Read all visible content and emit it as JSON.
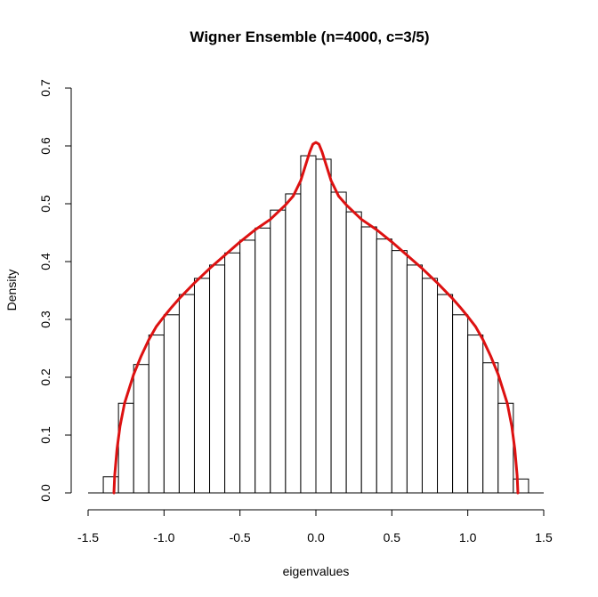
{
  "chart_data": {
    "type": "histogram",
    "title": "Wigner Ensemble (n=4000, c=3/5)",
    "xlabel": "eigenvalues",
    "ylabel": "Density",
    "xlim": [
      -1.5,
      1.5
    ],
    "ylim": [
      0,
      0.7
    ],
    "xticks": [
      -1.5,
      -1.0,
      -0.5,
      0.0,
      0.5,
      1.0,
      1.5
    ],
    "xtick_labels": [
      "-1.5",
      "-1.0",
      "-0.5",
      "0.0",
      "0.5",
      "1.0",
      "1.5"
    ],
    "yticks": [
      0.0,
      0.1,
      0.2,
      0.3,
      0.4,
      0.5,
      0.6,
      0.7
    ],
    "ytick_labels": [
      "0.0",
      "0.1",
      "0.2",
      "0.3",
      "0.4",
      "0.5",
      "0.6",
      "0.7"
    ],
    "bin_width": 0.1,
    "bins": [
      {
        "x0": -1.4,
        "x1": -1.3,
        "density": 0.028
      },
      {
        "x0": -1.3,
        "x1": -1.2,
        "density": 0.155
      },
      {
        "x0": -1.2,
        "x1": -1.1,
        "density": 0.222
      },
      {
        "x0": -1.1,
        "x1": -1.0,
        "density": 0.273
      },
      {
        "x0": -1.0,
        "x1": -0.9,
        "density": 0.308
      },
      {
        "x0": -0.9,
        "x1": -0.8,
        "density": 0.343
      },
      {
        "x0": -0.8,
        "x1": -0.7,
        "density": 0.371
      },
      {
        "x0": -0.7,
        "x1": -0.6,
        "density": 0.394
      },
      {
        "x0": -0.6,
        "x1": -0.5,
        "density": 0.415
      },
      {
        "x0": -0.5,
        "x1": -0.4,
        "density": 0.437
      },
      {
        "x0": -0.4,
        "x1": -0.3,
        "density": 0.458
      },
      {
        "x0": -0.3,
        "x1": -0.2,
        "density": 0.489
      },
      {
        "x0": -0.2,
        "x1": -0.1,
        "density": 0.517
      },
      {
        "x0": -0.1,
        "x1": 0.0,
        "density": 0.583
      },
      {
        "x0": 0.0,
        "x1": 0.1,
        "density": 0.577
      },
      {
        "x0": 0.1,
        "x1": 0.2,
        "density": 0.52
      },
      {
        "x0": 0.2,
        "x1": 0.3,
        "density": 0.486
      },
      {
        "x0": 0.3,
        "x1": 0.4,
        "density": 0.46
      },
      {
        "x0": 0.4,
        "x1": 0.5,
        "density": 0.439
      },
      {
        "x0": 0.5,
        "x1": 0.6,
        "density": 0.419
      },
      {
        "x0": 0.6,
        "x1": 0.7,
        "density": 0.394
      },
      {
        "x0": 0.7,
        "x1": 0.8,
        "density": 0.371
      },
      {
        "x0": 0.8,
        "x1": 0.9,
        "density": 0.343
      },
      {
        "x0": 0.9,
        "x1": 1.0,
        "density": 0.308
      },
      {
        "x0": 1.0,
        "x1": 1.1,
        "density": 0.273
      },
      {
        "x0": 1.1,
        "x1": 1.2,
        "density": 0.225
      },
      {
        "x0": 1.2,
        "x1": 1.3,
        "density": 0.155
      },
      {
        "x0": 1.3,
        "x1": 1.4,
        "density": 0.024
      }
    ],
    "density_curve": {
      "color": "#dd1111",
      "x": [
        -1.33,
        -1.325,
        -1.31,
        -1.29,
        -1.26,
        -1.2,
        -1.15,
        -1.1,
        -1.05,
        -1.0,
        -0.95,
        -0.9,
        -0.8,
        -0.7,
        -0.6,
        -0.5,
        -0.4,
        -0.3,
        -0.2,
        -0.15,
        -0.1,
        -0.07,
        -0.04,
        -0.02,
        0.0,
        0.02,
        0.04,
        0.07,
        0.1,
        0.15,
        0.2,
        0.3,
        0.4,
        0.5,
        0.6,
        0.7,
        0.8,
        0.9,
        0.95,
        1.0,
        1.05,
        1.1,
        1.15,
        1.2,
        1.26,
        1.29,
        1.31,
        1.325,
        1.33
      ],
      "y": [
        0.0,
        0.03,
        0.075,
        0.115,
        0.155,
        0.205,
        0.237,
        0.265,
        0.288,
        0.305,
        0.321,
        0.336,
        0.363,
        0.388,
        0.411,
        0.434,
        0.455,
        0.473,
        0.498,
        0.513,
        0.54,
        0.565,
        0.59,
        0.603,
        0.606,
        0.603,
        0.59,
        0.565,
        0.54,
        0.513,
        0.498,
        0.473,
        0.455,
        0.434,
        0.411,
        0.388,
        0.363,
        0.336,
        0.321,
        0.305,
        0.288,
        0.265,
        0.237,
        0.205,
        0.155,
        0.115,
        0.075,
        0.03,
        0.0
      ]
    }
  }
}
